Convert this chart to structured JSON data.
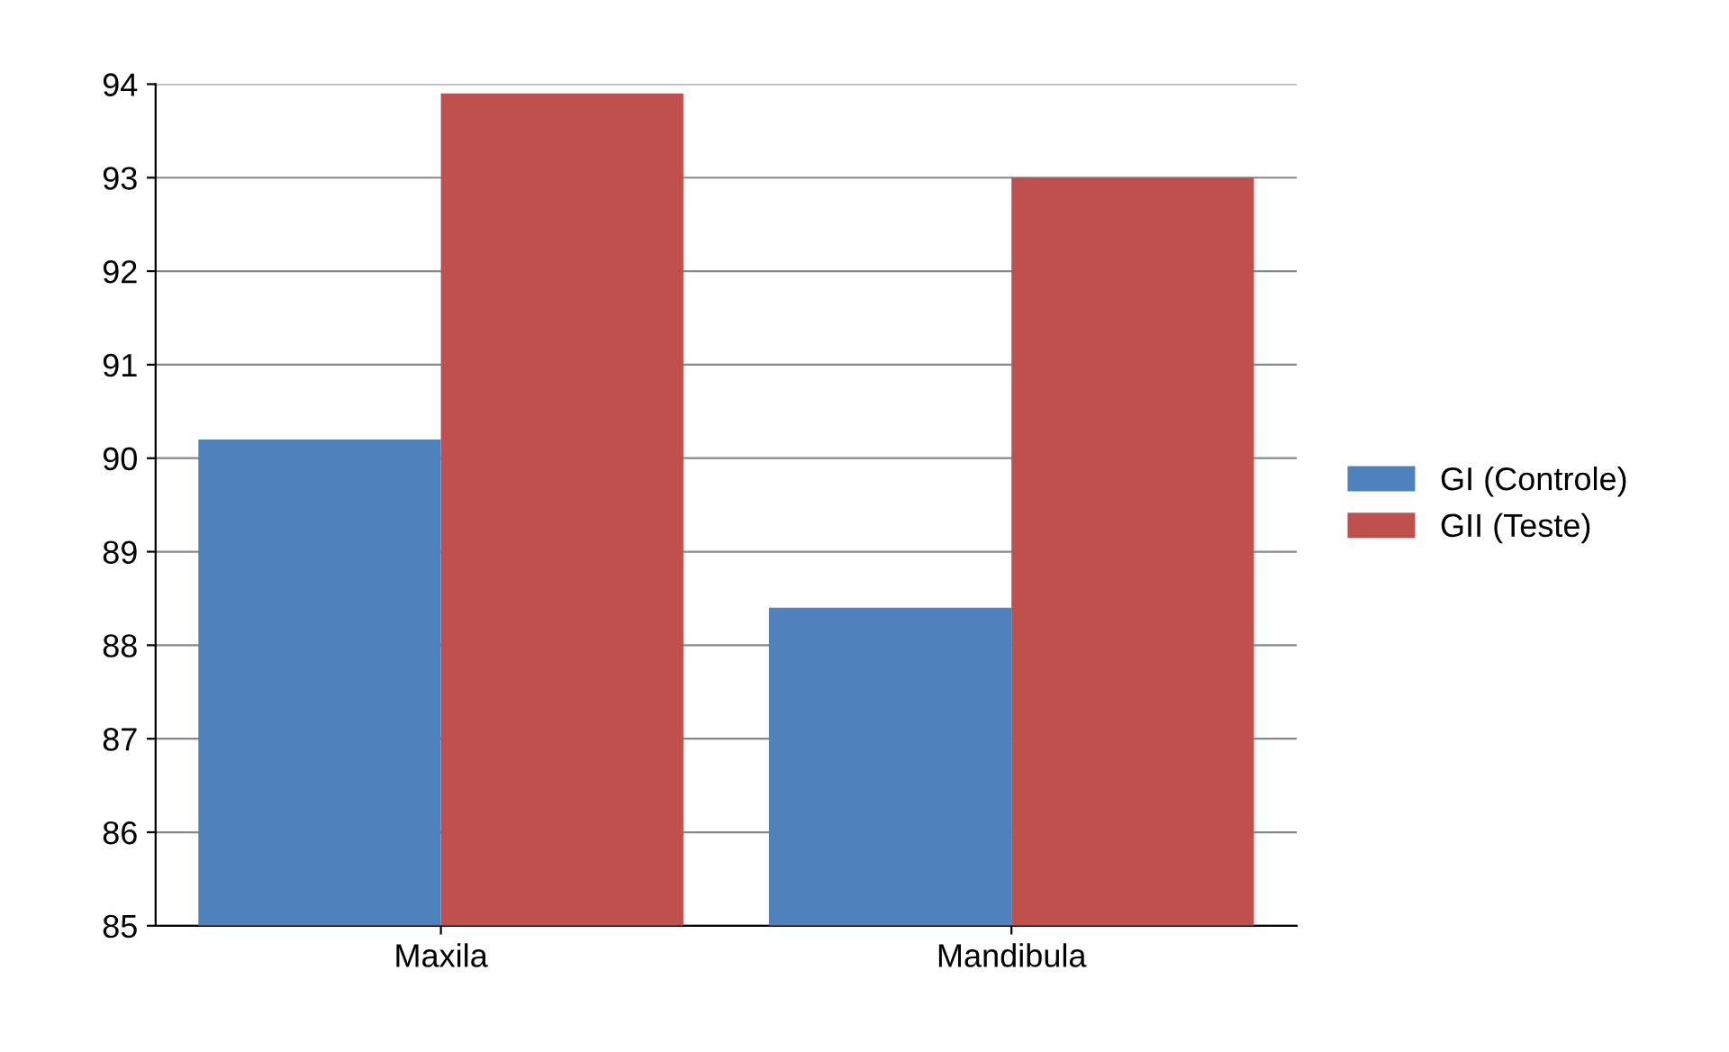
{
  "chart_data": {
    "type": "bar",
    "categories": [
      "Maxila",
      "Mandibula"
    ],
    "series": [
      {
        "name": "GI (Controle)",
        "color": "#4f81bd",
        "values": [
          90.2,
          88.4
        ]
      },
      {
        "name": "GII (Teste)",
        "color": "#c0504d",
        "values": [
          93.9,
          93.0
        ]
      }
    ],
    "ylim": [
      85,
      94
    ],
    "yticks": [
      85,
      86,
      87,
      88,
      89,
      90,
      91,
      92,
      93,
      94
    ],
    "grid": "y",
    "legend": "right"
  }
}
